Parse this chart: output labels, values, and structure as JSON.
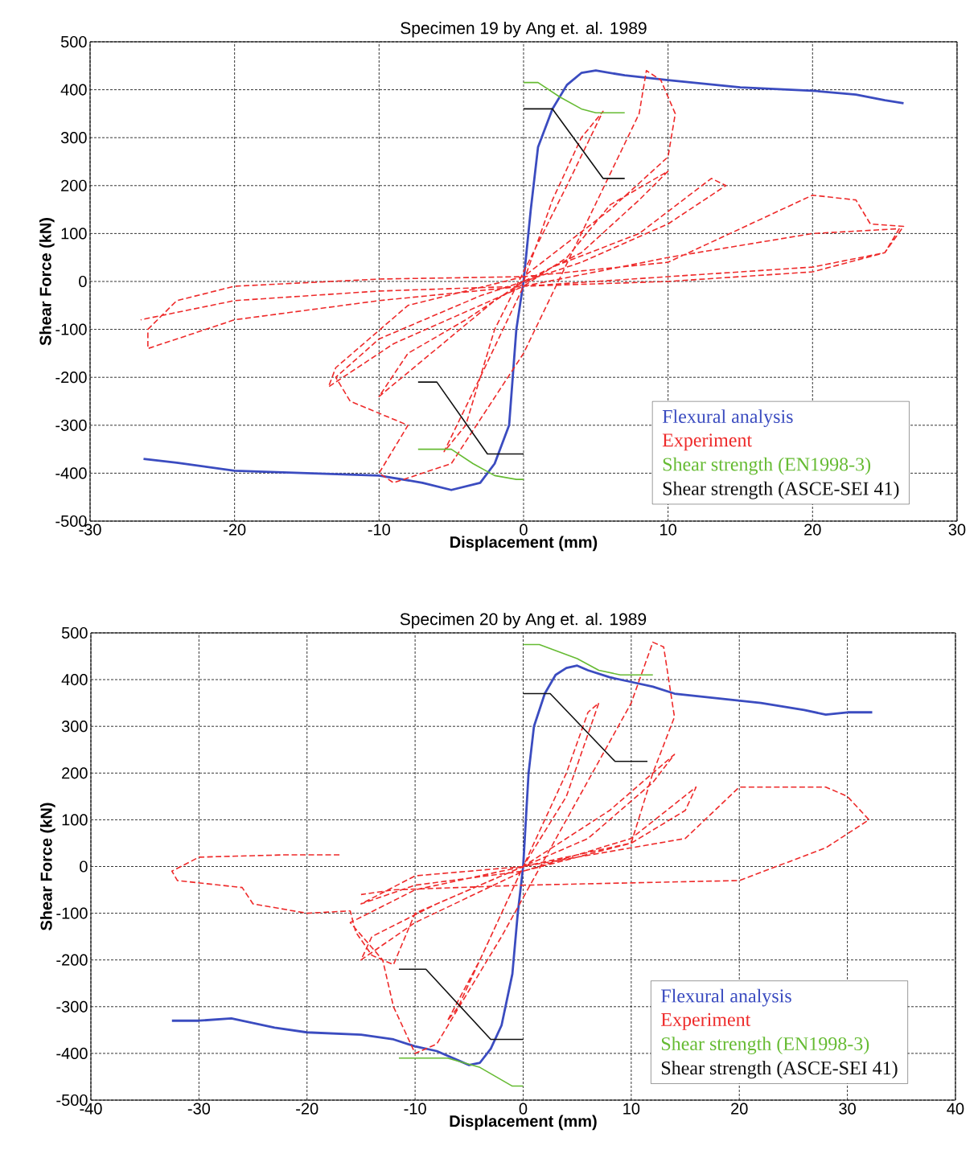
{
  "chart_data": [
    {
      "type": "line",
      "title": "Specimen 19 by Ang et. al. 1989",
      "xlabel": "Displacement (mm)",
      "ylabel": "Shear Force (kN)",
      "xlim": [
        -30,
        30
      ],
      "ylim": [
        -500,
        500
      ],
      "xticks": [
        -30,
        -20,
        -10,
        0,
        10,
        20,
        30
      ],
      "yticks": [
        -500,
        -400,
        -300,
        -200,
        -100,
        0,
        100,
        200,
        300,
        400,
        500
      ],
      "grid": true,
      "legend": "bottom right",
      "series": [
        {
          "name": "Flexural    analysis",
          "color": "#3b4cc0",
          "line_style": "solid",
          "x": [
            -26.3,
            -24,
            -20,
            -15,
            -10,
            -7,
            -5,
            -3,
            -2,
            -1,
            -0.5,
            0,
            0.5,
            1,
            2,
            3,
            4,
            5,
            7,
            10,
            15,
            20,
            23,
            25,
            26.3
          ],
          "values": [
            -370,
            -378,
            -395,
            -400,
            -405,
            -420,
            -435,
            -420,
            -380,
            -300,
            -100,
            0,
            150,
            280,
            360,
            410,
            435,
            440,
            430,
            420,
            405,
            398,
            390,
            378,
            372
          ]
        },
        {
          "name": "Experiment",
          "color": "#ee2a2a",
          "line_style": "dashed",
          "x": [
            0,
            2,
            4,
            5.5,
            3,
            0,
            -2,
            -4,
            -5.5,
            -3,
            0,
            3,
            6,
            10,
            8,
            4,
            0,
            -4,
            -8,
            -10,
            -6,
            -2,
            2,
            8,
            13,
            14,
            10,
            4,
            -3,
            -10,
            -13,
            -12,
            -8,
            -10,
            -9,
            -5,
            0,
            4,
            8,
            8.5,
            9.5,
            10.5,
            10,
            6,
            0,
            -8,
            -13,
            -13.5,
            -9,
            0,
            10,
            20,
            26,
            25,
            20,
            10,
            0,
            -10,
            -20,
            -26,
            -26,
            -24,
            -20,
            -10,
            0,
            10,
            20,
            23,
            24,
            26.3,
            25,
            20,
            10,
            0,
            -10,
            -20,
            -26.5
          ],
          "values": [
            0,
            170,
            300,
            355,
            200,
            20,
            -100,
            -300,
            -355,
            -200,
            -10,
            50,
            160,
            230,
            170,
            60,
            0,
            -80,
            -150,
            -240,
            -140,
            -40,
            30,
            100,
            215,
            200,
            120,
            40,
            -30,
            -120,
            -200,
            -250,
            -300,
            -400,
            -420,
            -380,
            -150,
            100,
            350,
            440,
            420,
            350,
            260,
            150,
            10,
            -50,
            -180,
            -220,
            -130,
            -10,
            50,
            100,
            110,
            60,
            20,
            0,
            -10,
            -40,
            -80,
            -140,
            -100,
            -40,
            -10,
            5,
            10,
            40,
            180,
            170,
            120,
            115,
            60,
            30,
            10,
            -10,
            -20,
            -40,
            -80
          ]
        },
        {
          "name": "Shear strength (EN1998-3)",
          "color": "#66bb33",
          "line_style": "solid",
          "x": [
            0,
            1,
            2.5,
            4,
            5,
            7,
            null,
            -7.3,
            -5,
            -3.5,
            -2,
            -0.5,
            0
          ],
          "values": [
            415,
            415,
            385,
            360,
            352,
            352,
            null,
            -350,
            -350,
            -380,
            -405,
            -413,
            -413
          ]
        },
        {
          "name": "Shear strength (ASCE-SEI 41)",
          "color": "#111111",
          "line_style": "solid",
          "x": [
            0,
            2,
            5.5,
            7,
            null,
            -7.3,
            -6,
            -2.5,
            0
          ],
          "values": [
            360,
            360,
            215,
            215,
            null,
            -210,
            -210,
            -360,
            -360
          ]
        }
      ]
    },
    {
      "type": "line",
      "title": "Specimen 20 by Ang et. al. 1989",
      "xlabel": "Displacement (mm)",
      "ylabel": "Shear Force (kN)",
      "xlim": [
        -40,
        40
      ],
      "ylim": [
        -500,
        500
      ],
      "xticks": [
        -40,
        -30,
        -20,
        -10,
        0,
        10,
        20,
        30,
        40
      ],
      "yticks": [
        -500,
        -400,
        -300,
        -200,
        -100,
        0,
        100,
        200,
        300,
        400,
        500
      ],
      "grid": true,
      "legend": "bottom right",
      "series": [
        {
          "name": "Flexural    analysis",
          "color": "#3b4cc0",
          "line_style": "solid",
          "x": [
            -32.5,
            -30,
            -27,
            -23,
            -20,
            -15,
            -12,
            -10,
            -8,
            -6,
            -5,
            -4,
            -3,
            -2,
            -1,
            -0.5,
            0,
            0.5,
            1,
            2,
            3,
            4,
            5,
            6,
            8,
            10,
            12,
            14,
            18,
            22,
            26,
            28,
            30,
            32.3
          ],
          "values": [
            -330,
            -330,
            -325,
            -345,
            -355,
            -360,
            -370,
            -385,
            -395,
            -415,
            -425,
            -420,
            -390,
            -340,
            -230,
            -100,
            0,
            200,
            300,
            370,
            410,
            425,
            430,
            420,
            405,
            395,
            385,
            370,
            360,
            350,
            335,
            325,
            330,
            330
          ]
        },
        {
          "name": "Experiment",
          "color": "#ee2a2a",
          "line_style": "dashed",
          "x": [
            -17,
            -22,
            -30,
            -32.5,
            -32,
            -26,
            -25,
            -20,
            -16,
            -15.5,
            -14,
            -12,
            -10,
            0,
            4,
            6,
            7,
            4,
            0,
            -4,
            -7,
            -6,
            -2,
            0,
            8,
            12,
            14,
            12,
            6,
            0,
            -8,
            -14,
            -15,
            -10,
            0,
            10,
            16,
            15,
            10,
            0,
            -10,
            -16,
            -13,
            -12,
            -10,
            -8,
            -2,
            4,
            10,
            12,
            13,
            14,
            12,
            10,
            0,
            -10,
            -15,
            -10,
            0,
            15,
            20,
            28,
            30,
            32,
            28,
            20,
            10,
            0,
            -12,
            -15
          ],
          "values": [
            25,
            25,
            20,
            -10,
            -30,
            -45,
            -80,
            -100,
            -95,
            -140,
            -190,
            -210,
            -100,
            0,
            200,
            330,
            350,
            150,
            0,
            -200,
            -330,
            -300,
            -100,
            0,
            120,
            200,
            240,
            180,
            60,
            0,
            -80,
            -150,
            -200,
            -120,
            -10,
            60,
            170,
            120,
            50,
            0,
            -50,
            -120,
            -200,
            -300,
            -400,
            -380,
            -150,
            100,
            350,
            480,
            470,
            320,
            200,
            50,
            -10,
            -40,
            -80,
            -20,
            0,
            60,
            170,
            170,
            150,
            100,
            40,
            -30,
            -35,
            -40,
            -50,
            -60
          ]
        },
        {
          "name": "Shear strength (EN1998-3)",
          "color": "#66bb33",
          "line_style": "solid",
          "x": [
            0,
            1.5,
            5,
            7,
            9,
            12,
            null,
            -11.5,
            -7,
            -4,
            -1,
            0
          ],
          "values": [
            475,
            475,
            445,
            420,
            410,
            410,
            null,
            -410,
            -410,
            -430,
            -470,
            -470
          ]
        },
        {
          "name": "Shear strength (ASCE-SEI 41)",
          "color": "#111111",
          "line_style": "solid",
          "x": [
            0,
            2.5,
            8.5,
            11.5,
            null,
            -11.5,
            -9,
            -3,
            0
          ],
          "values": [
            370,
            370,
            225,
            225,
            null,
            -220,
            -220,
            -370,
            -370
          ]
        }
      ]
    }
  ]
}
